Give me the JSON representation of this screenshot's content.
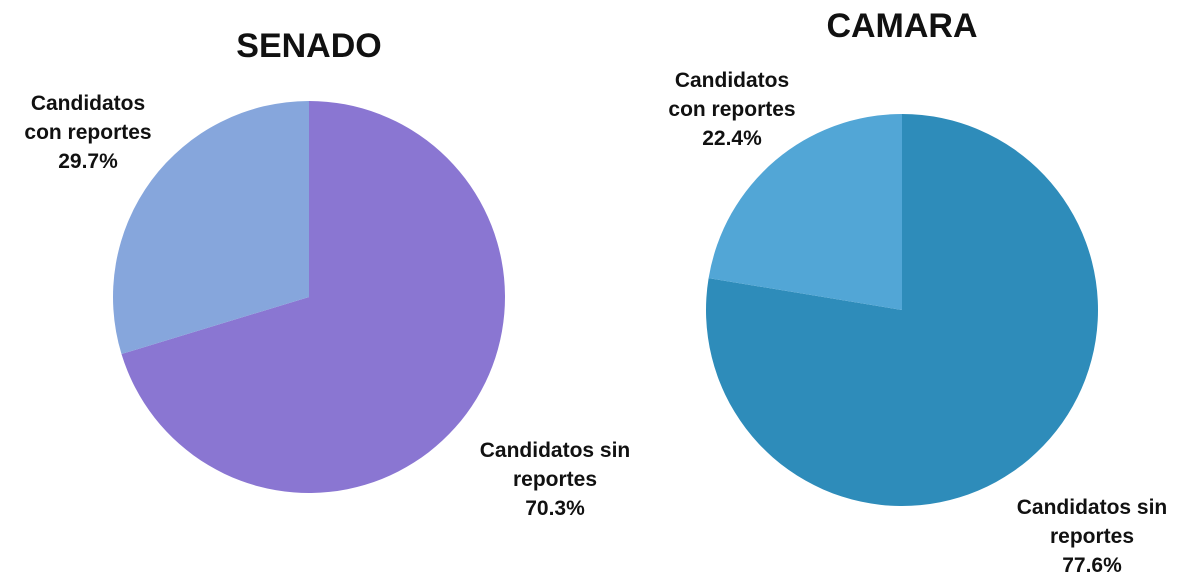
{
  "chart_data": [
    {
      "type": "pie",
      "title": "SENADO",
      "categories": [
        "Candidatos sin reportes",
        "Candidatos con reportes"
      ],
      "values": [
        70.3,
        29.7
      ],
      "value_labels": [
        "70.3%",
        "29.7%"
      ],
      "colors": [
        "#8a76d2",
        "#86a6dc"
      ]
    },
    {
      "type": "pie",
      "title": "CAMARA",
      "categories": [
        "Candidatos sin reportes",
        "Candidatos con reportes"
      ],
      "values": [
        77.6,
        22.4
      ],
      "value_labels": [
        "77.6%",
        "22.4%"
      ],
      "colors": [
        "#2e8cba",
        "#52a6d6"
      ]
    }
  ]
}
